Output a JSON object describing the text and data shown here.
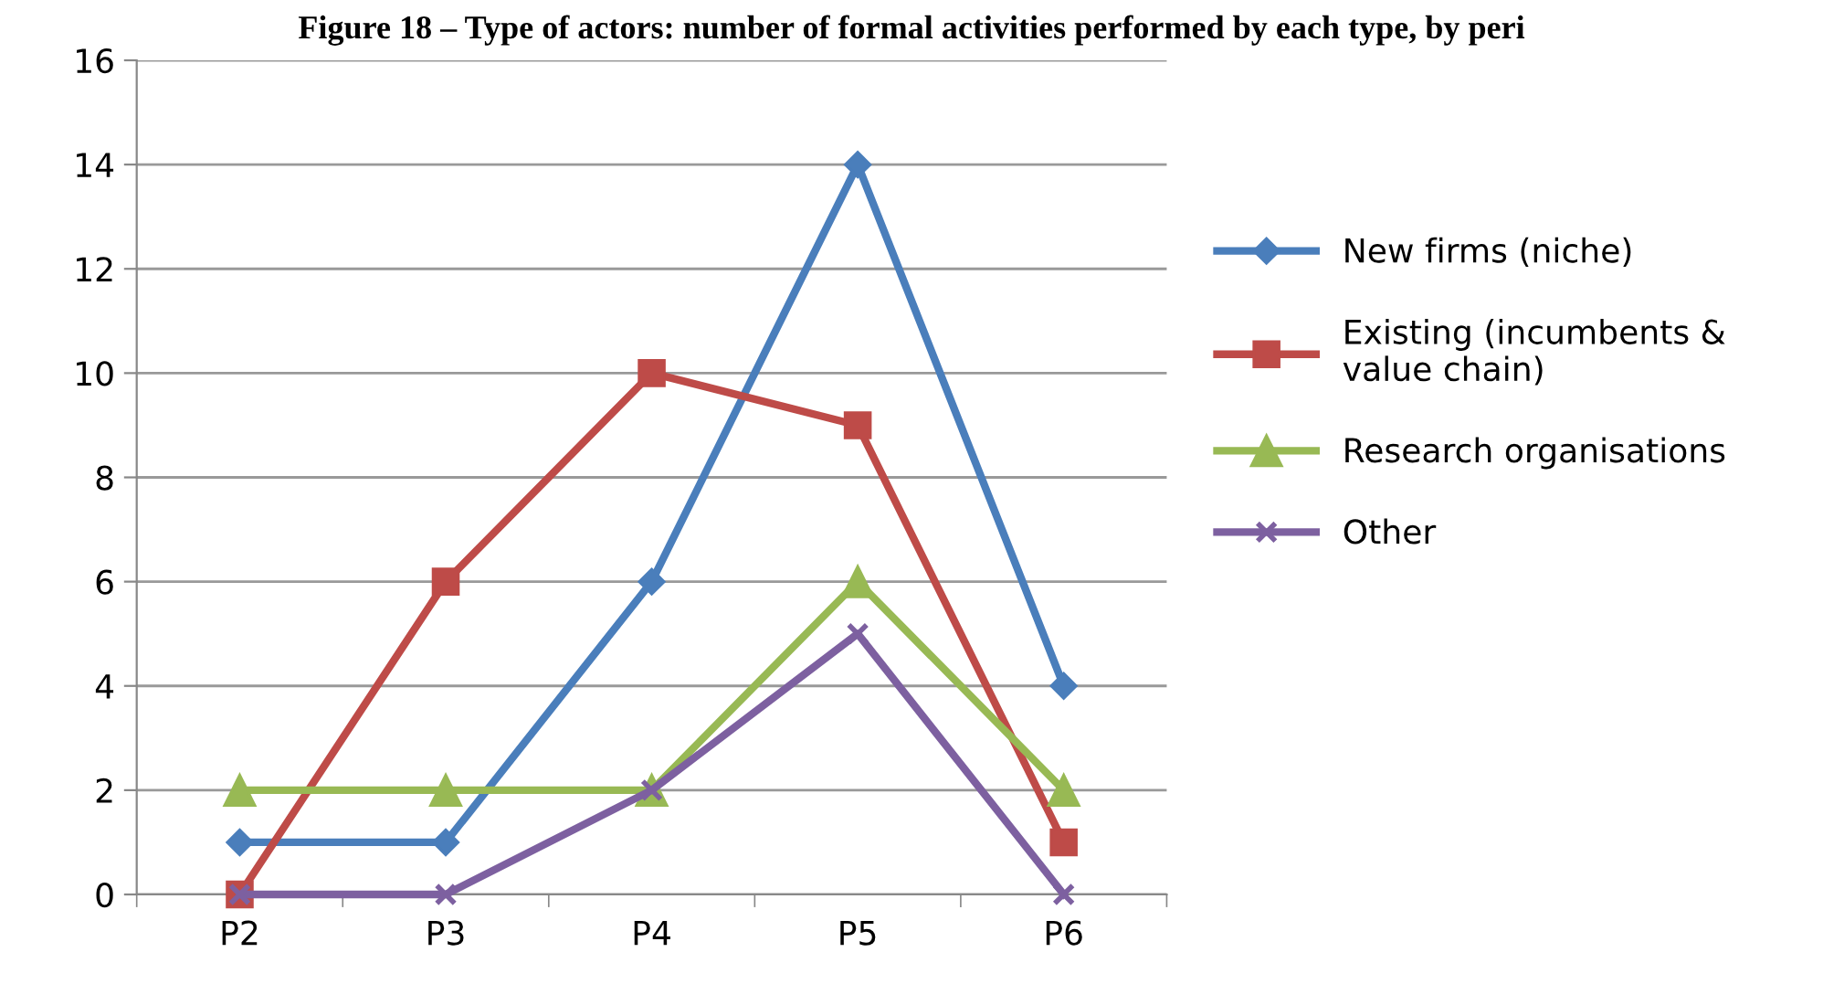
{
  "chart_data": {
    "type": "line",
    "title": "Figure 18 – Type of actors: number of formal activities performed by each type, by peri",
    "categories": [
      "P2",
      "P3",
      "P4",
      "P5",
      "P6"
    ],
    "series": [
      {
        "name": "New firms (niche)",
        "color": "#4a7ebb",
        "marker": "diamond",
        "values": [
          1,
          1,
          6,
          14,
          4
        ]
      },
      {
        "name": "Existing (incumbents &\nvalue chain)",
        "color": "#be4b48",
        "marker": "square",
        "values": [
          0,
          6,
          10,
          9,
          1
        ]
      },
      {
        "name": "Research organisations",
        "color": "#98b954",
        "marker": "triangle",
        "values": [
          2,
          2,
          2,
          6,
          2
        ]
      },
      {
        "name": "Other",
        "color": "#7d60a0",
        "marker": "cross",
        "values": [
          0,
          0,
          2,
          5,
          0
        ]
      }
    ],
    "ylim": [
      0,
      16
    ],
    "yticks": [
      0,
      2,
      4,
      6,
      8,
      10,
      12,
      14,
      16
    ],
    "grid": "y",
    "legend": "right",
    "line_style": "solid"
  }
}
